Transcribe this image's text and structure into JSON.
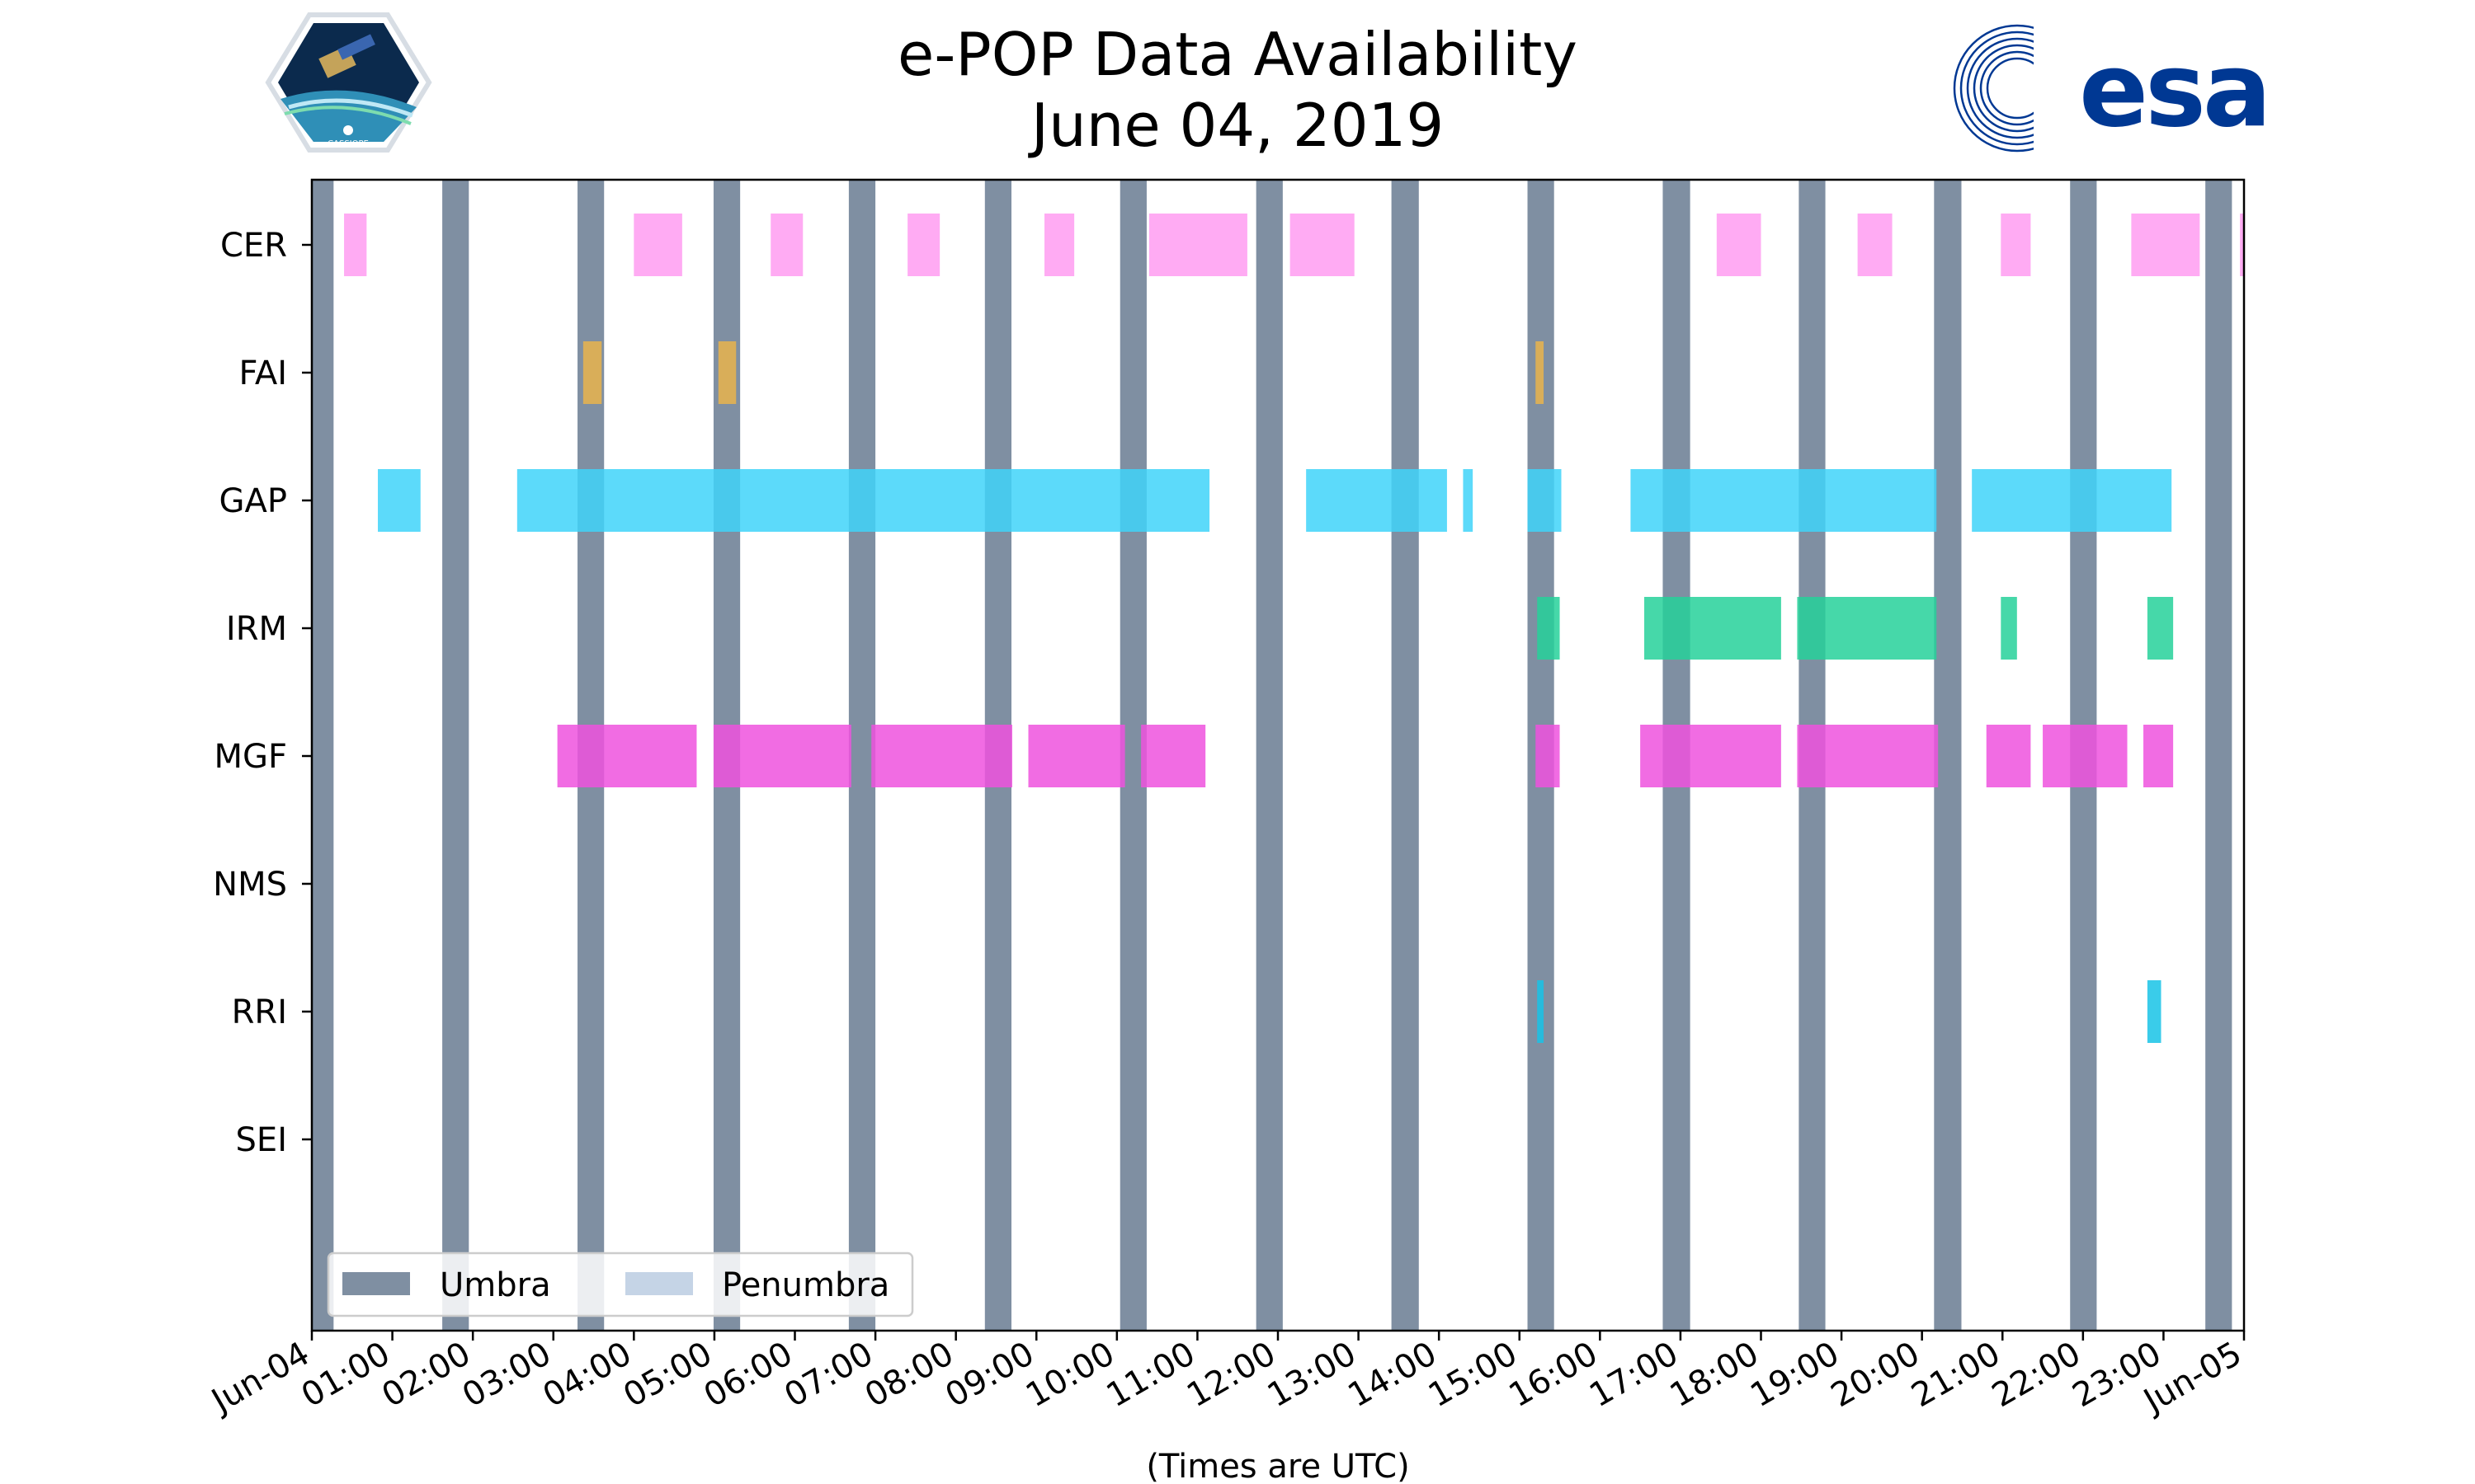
{
  "chart_data": {
    "type": "timeline",
    "title": [
      "e-POP Data Availability",
      "June 04, 2019"
    ],
    "xlabel": "(Times are UTC)",
    "x_unit": "hours since Jun-04 00:00 UTC",
    "xlim": [
      0,
      24
    ],
    "x_ticks": [
      "Jun-04",
      "01:00",
      "02:00",
      "03:00",
      "04:00",
      "05:00",
      "06:00",
      "07:00",
      "08:00",
      "09:00",
      "10:00",
      "11:00",
      "12:00",
      "13:00",
      "14:00",
      "15:00",
      "16:00",
      "17:00",
      "18:00",
      "19:00",
      "20:00",
      "21:00",
      "22:00",
      "23:00",
      "Jun-05"
    ],
    "instruments": [
      "CER",
      "FAI",
      "GAP",
      "IRM",
      "MGF",
      "NMS",
      "RRI",
      "SEI"
    ],
    "colors": {
      "umbra": "#7f8fa2",
      "penumbra": "#c5d4e6",
      "CER": "#ff9cf1",
      "FAI": "#e9b44c",
      "GAP": "#3fd4f9",
      "IRM": "#26d19a",
      "MGF": "#ee52de",
      "NMS": "#999999",
      "RRI": "#18c3e6",
      "SEI": "#999999"
    },
    "umbra": [
      [
        0,
        0.27
      ],
      [
        1.62,
        1.95
      ],
      [
        3.3,
        3.63
      ],
      [
        4.99,
        5.32
      ],
      [
        6.67,
        7.0
      ],
      [
        8.36,
        8.69
      ],
      [
        10.04,
        10.37
      ],
      [
        11.73,
        12.06
      ],
      [
        13.41,
        13.75
      ],
      [
        15.1,
        15.43
      ],
      [
        16.78,
        17.12
      ],
      [
        18.47,
        18.8
      ],
      [
        20.15,
        20.49
      ],
      [
        21.84,
        22.17
      ],
      [
        23.52,
        23.85
      ]
    ],
    "penumbra": [],
    "series": [
      {
        "name": "CER",
        "intervals": [
          [
            0.4,
            0.68
          ],
          [
            4.0,
            4.6
          ],
          [
            5.7,
            6.1
          ],
          [
            7.4,
            7.8
          ],
          [
            9.1,
            9.47
          ],
          [
            10.4,
            11.62
          ],
          [
            12.15,
            12.95
          ],
          [
            17.45,
            18.0
          ],
          [
            19.2,
            19.63
          ],
          [
            20.98,
            21.35
          ],
          [
            22.6,
            23.45
          ],
          [
            23.95,
            24.0
          ]
        ]
      },
      {
        "name": "FAI",
        "intervals": [
          [
            3.37,
            3.6
          ],
          [
            5.05,
            5.27
          ],
          [
            15.2,
            15.3
          ]
        ]
      },
      {
        "name": "GAP",
        "intervals": [
          [
            0.82,
            1.35
          ],
          [
            2.55,
            11.15
          ],
          [
            12.35,
            14.1
          ],
          [
            14.3,
            14.42
          ],
          [
            15.1,
            15.52
          ],
          [
            16.38,
            20.18
          ],
          [
            20.62,
            23.1
          ]
        ]
      },
      {
        "name": "IRM",
        "intervals": [
          [
            15.22,
            15.5
          ],
          [
            16.55,
            18.25
          ],
          [
            18.45,
            20.18
          ],
          [
            20.98,
            21.18
          ],
          [
            22.8,
            23.12
          ]
        ]
      },
      {
        "name": "MGF",
        "intervals": [
          [
            3.05,
            4.78
          ],
          [
            4.99,
            6.7
          ],
          [
            6.95,
            8.7
          ],
          [
            8.9,
            10.1
          ],
          [
            10.3,
            11.1
          ],
          [
            15.2,
            15.5
          ],
          [
            16.5,
            18.25
          ],
          [
            18.45,
            20.2
          ],
          [
            20.8,
            21.35
          ],
          [
            21.5,
            22.55
          ],
          [
            22.75,
            23.12
          ]
        ]
      },
      {
        "name": "NMS",
        "intervals": []
      },
      {
        "name": "RRI",
        "intervals": [
          [
            15.22,
            15.3
          ],
          [
            22.8,
            22.97
          ]
        ]
      },
      {
        "name": "SEI",
        "intervals": []
      }
    ],
    "legend": {
      "location": "lower-left",
      "entries": [
        "Umbra",
        "Penumbra"
      ]
    }
  },
  "logos": {
    "left": "CASSIOPE",
    "right": "esa"
  }
}
